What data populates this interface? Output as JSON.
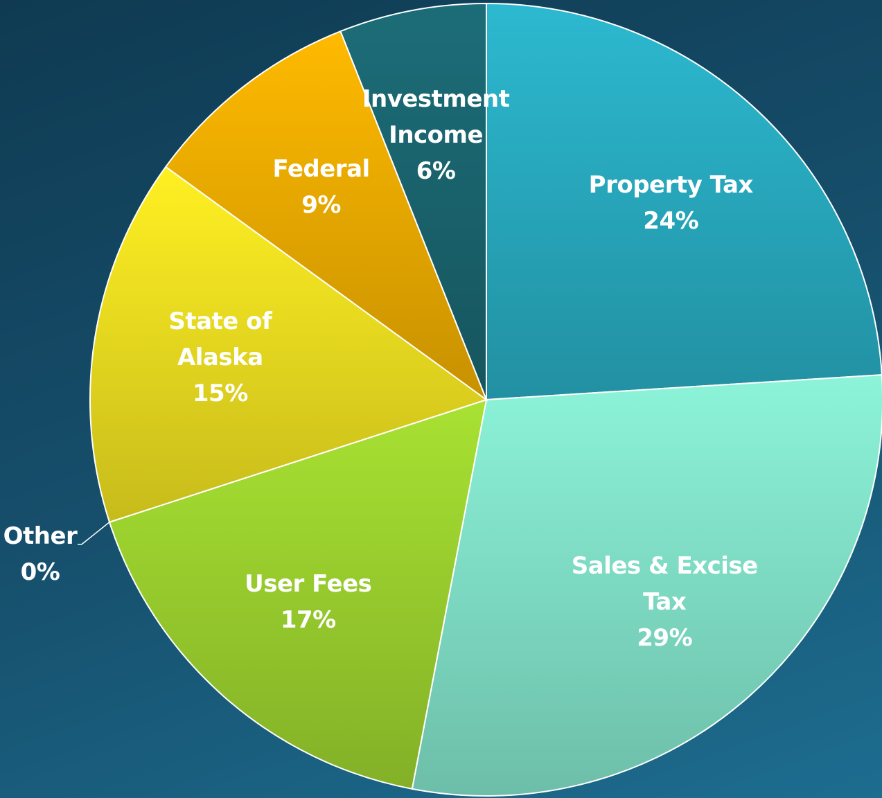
{
  "chart_data": {
    "type": "pie",
    "categories": [
      "Property Tax",
      "Sales & Excise Tax",
      "User Fees",
      "Other",
      "State of Alaska",
      "Federal",
      "Investment Income"
    ],
    "values": [
      24,
      29,
      17,
      0,
      15,
      9,
      6
    ],
    "value_labels": [
      "24%",
      "29%",
      "17%",
      "0%",
      "15%",
      "9%",
      "6%"
    ],
    "colors": [
      "#2cb9d0",
      "#8cf4d9",
      "#a8e232",
      "#e8e8a0",
      "#fff022",
      "#ffba00",
      "#1c6d78"
    ]
  }
}
